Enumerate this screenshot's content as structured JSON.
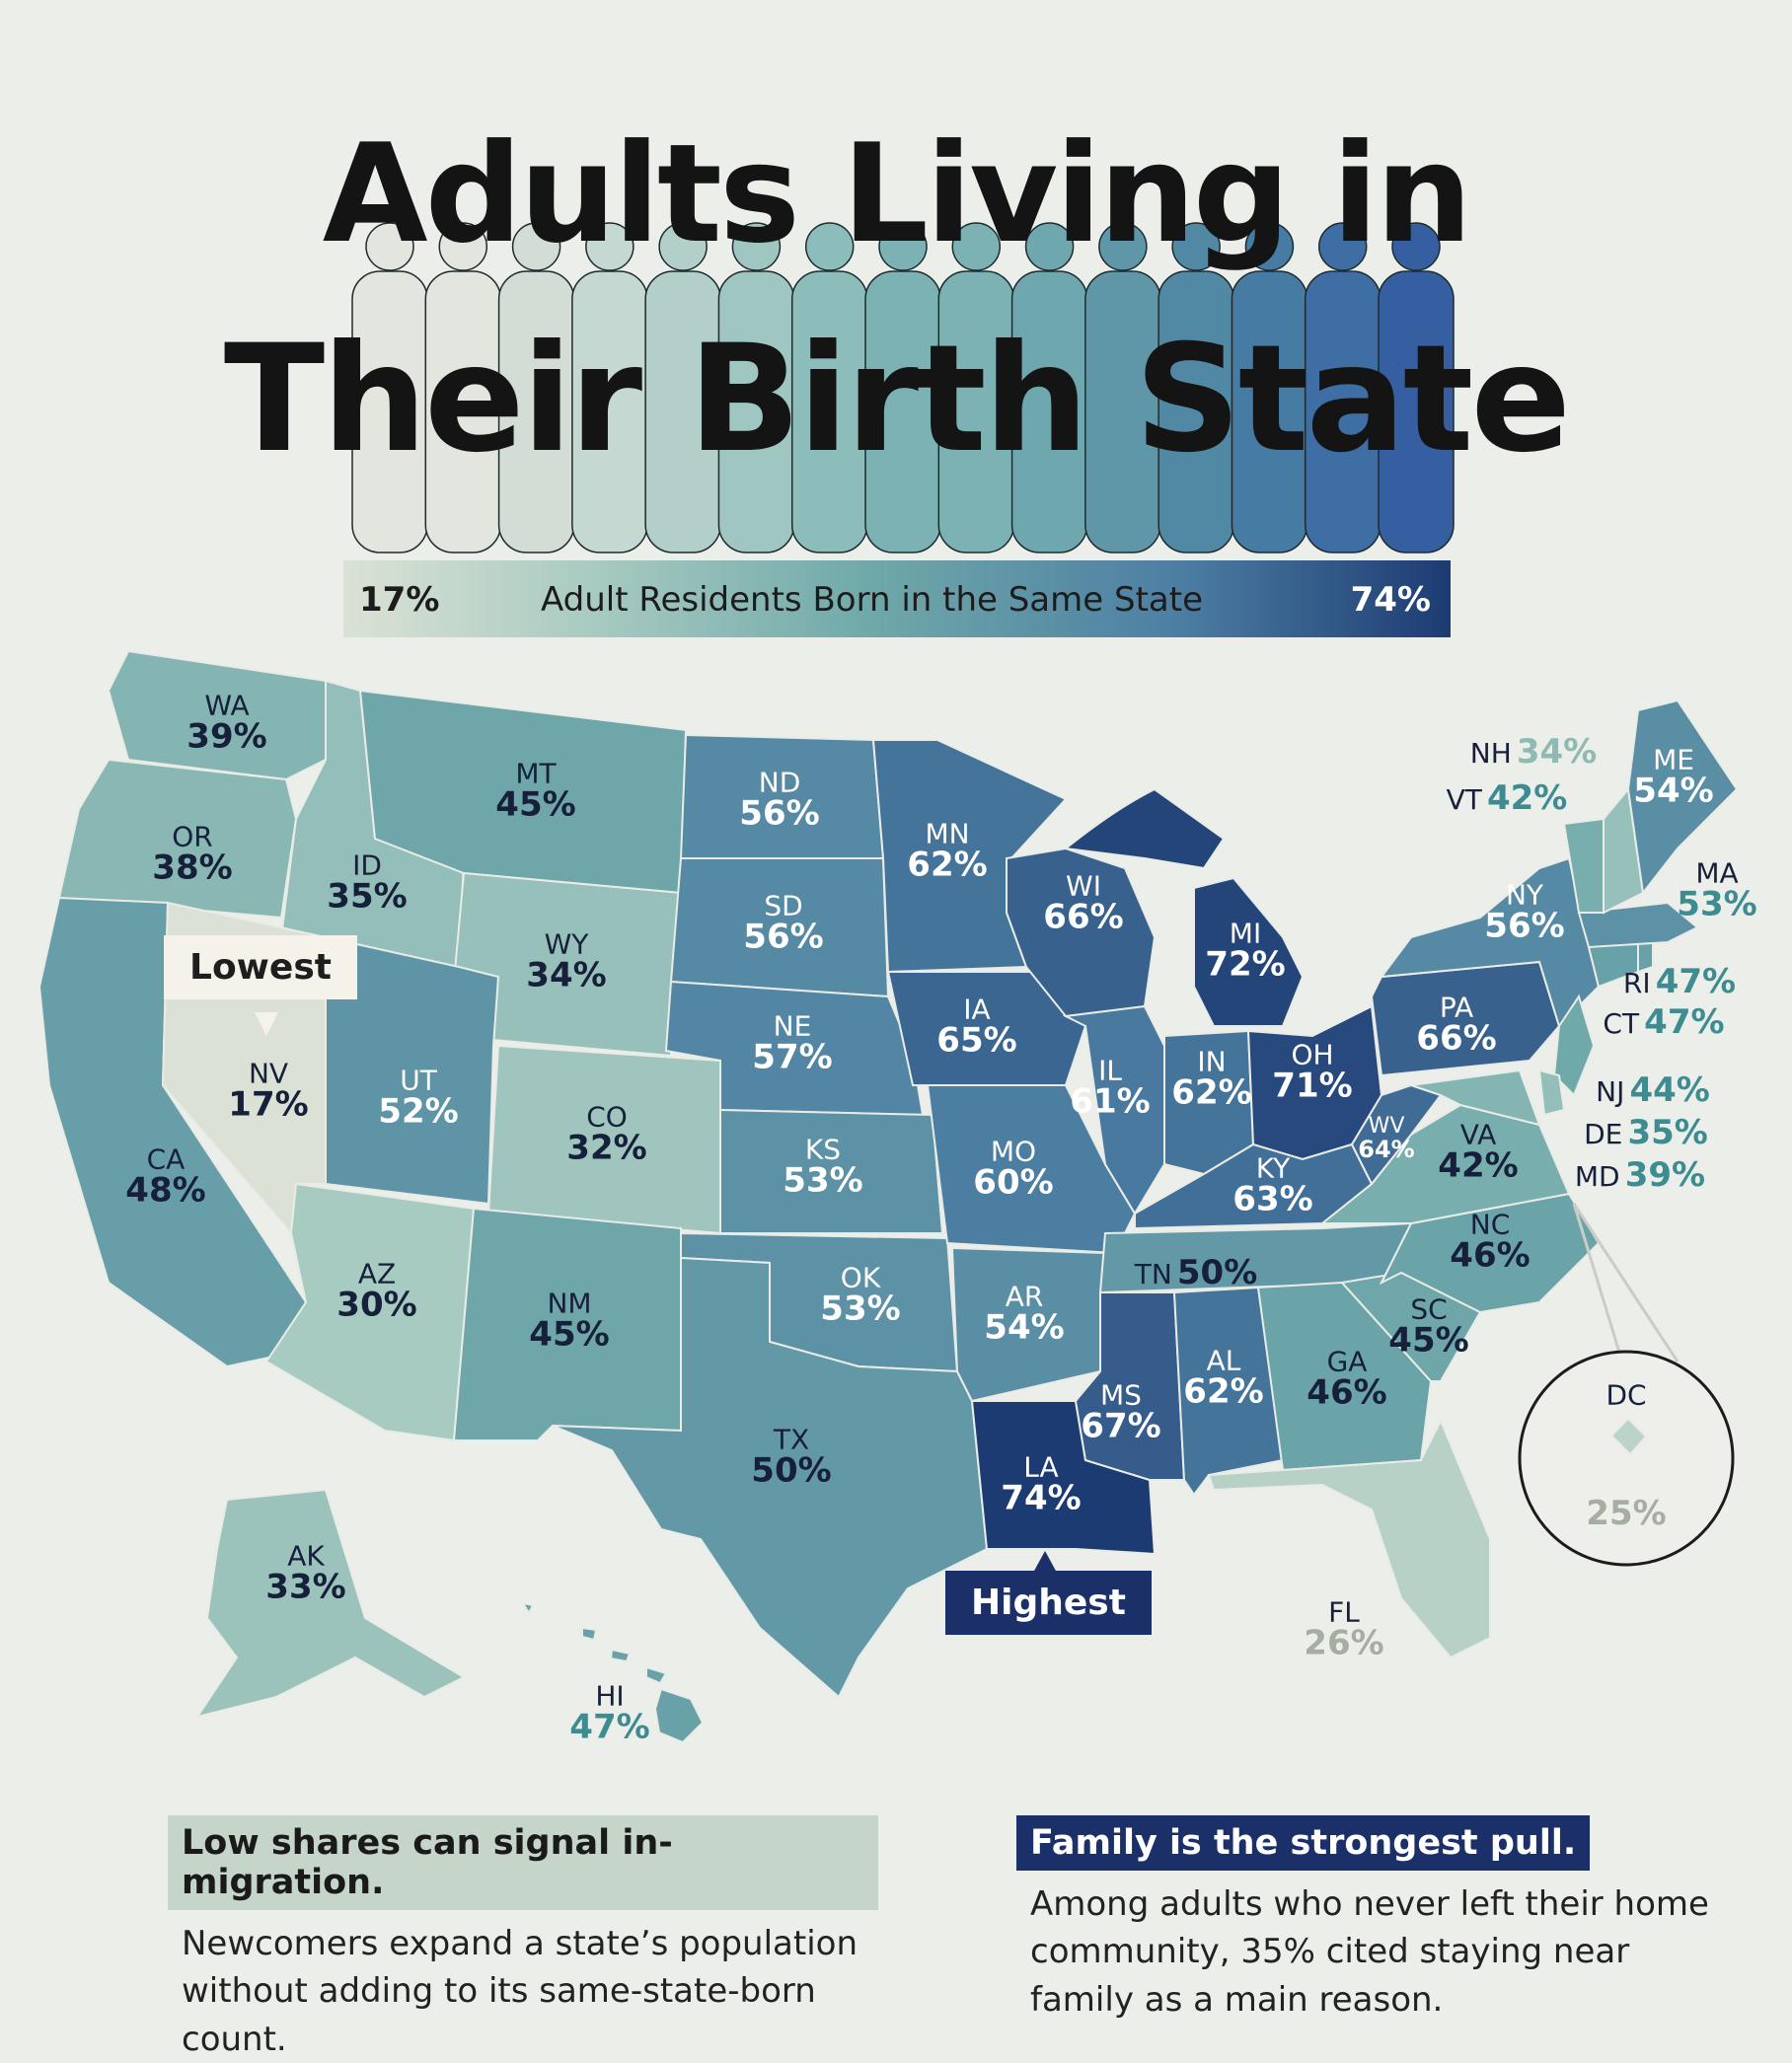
{
  "title": {
    "line1": "Adults Living in",
    "line2": "Their Birth State"
  },
  "legend": {
    "min": "17%",
    "label": "Adult Residents Born in the Same State",
    "max": "74%"
  },
  "states": [
    {
      "abbr": "WA",
      "pct": "39%"
    },
    {
      "abbr": "OR",
      "pct": "38%"
    },
    {
      "abbr": "CA",
      "pct": "48%"
    },
    {
      "abbr": "ID",
      "pct": "35%"
    },
    {
      "abbr": "NV",
      "pct": "17%"
    },
    {
      "abbr": "MT",
      "pct": "45%"
    },
    {
      "abbr": "WY",
      "pct": "34%"
    },
    {
      "abbr": "UT",
      "pct": "52%"
    },
    {
      "abbr": "CO",
      "pct": "32%"
    },
    {
      "abbr": "AZ",
      "pct": "30%"
    },
    {
      "abbr": "NM",
      "pct": "45%"
    },
    {
      "abbr": "ND",
      "pct": "56%"
    },
    {
      "abbr": "SD",
      "pct": "56%"
    },
    {
      "abbr": "NE",
      "pct": "57%"
    },
    {
      "abbr": "KS",
      "pct": "53%"
    },
    {
      "abbr": "OK",
      "pct": "53%"
    },
    {
      "abbr": "TX",
      "pct": "50%"
    },
    {
      "abbr": "MN",
      "pct": "62%"
    },
    {
      "abbr": "IA",
      "pct": "65%"
    },
    {
      "abbr": "MO",
      "pct": "60%"
    },
    {
      "abbr": "AR",
      "pct": "54%"
    },
    {
      "abbr": "LA",
      "pct": "74%"
    },
    {
      "abbr": "WI",
      "pct": "66%"
    },
    {
      "abbr": "IL",
      "pct": "61%"
    },
    {
      "abbr": "MI",
      "pct": "72%"
    },
    {
      "abbr": "IN",
      "pct": "62%"
    },
    {
      "abbr": "OH",
      "pct": "71%"
    },
    {
      "abbr": "KY",
      "pct": "63%"
    },
    {
      "abbr": "TN",
      "pct": "50%"
    },
    {
      "abbr": "MS",
      "pct": "67%"
    },
    {
      "abbr": "AL",
      "pct": "62%"
    },
    {
      "abbr": "GA",
      "pct": "46%"
    },
    {
      "abbr": "FL",
      "pct": "26%"
    },
    {
      "abbr": "SC",
      "pct": "45%"
    },
    {
      "abbr": "NC",
      "pct": "46%"
    },
    {
      "abbr": "VA",
      "pct": "42%"
    },
    {
      "abbr": "WV",
      "pct": "64%"
    },
    {
      "abbr": "PA",
      "pct": "66%"
    },
    {
      "abbr": "NY",
      "pct": "56%"
    },
    {
      "abbr": "ME",
      "pct": "54%"
    },
    {
      "abbr": "NH",
      "pct": "34%"
    },
    {
      "abbr": "VT",
      "pct": "42%"
    },
    {
      "abbr": "MA",
      "pct": "53%"
    },
    {
      "abbr": "RI",
      "pct": "47%"
    },
    {
      "abbr": "CT",
      "pct": "47%"
    },
    {
      "abbr": "NJ",
      "pct": "44%"
    },
    {
      "abbr": "DE",
      "pct": "35%"
    },
    {
      "abbr": "MD",
      "pct": "39%"
    },
    {
      "abbr": "DC",
      "pct": "25%"
    },
    {
      "abbr": "AK",
      "pct": "33%"
    },
    {
      "abbr": "HI",
      "pct": "47%"
    }
  ],
  "callouts": {
    "lowest": "Lowest",
    "highest": "Highest"
  },
  "notes": {
    "left": {
      "heading": "Low shares can signal in-migration.",
      "body": "Newcomers expand a state’s population without adding to its same-state-born count."
    },
    "right": {
      "heading": "Family is the strongest pull.",
      "body": "Among adults who never left their home community, 35% cited staying near family as a main reason."
    }
  },
  "colors": {
    "background": "#eceeea",
    "scale_low": "#dbe2d5",
    "scale_mid": "#6fa8a9",
    "scale_high": "#1d3b73",
    "highlight_dark": "#1b2f68",
    "label_teal": "#3d8c92"
  }
}
